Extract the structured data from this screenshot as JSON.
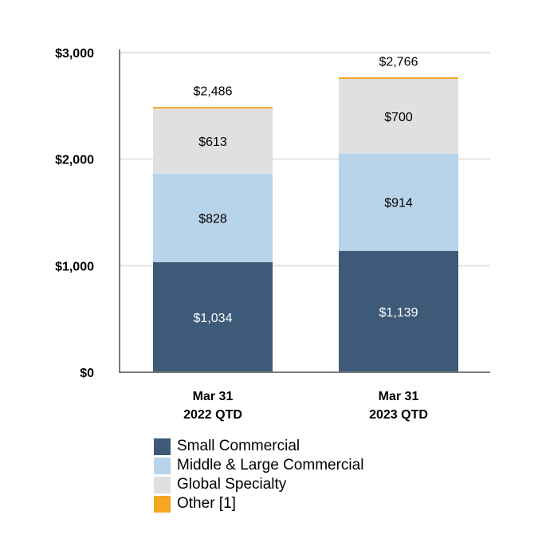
{
  "chart_data": {
    "type": "bar",
    "stacked": true,
    "title": "",
    "xlabel": "",
    "ylabel": "",
    "categories": [
      [
        "Mar 31",
        "2022 QTD"
      ],
      [
        "Mar 31",
        "2023 QTD"
      ]
    ],
    "ylim": [
      0,
      3000
    ],
    "yticks": [
      0,
      1000,
      2000,
      3000
    ],
    "ytick_labels": [
      "$0",
      "$1,000",
      "$2,000",
      "$3,000"
    ],
    "grid": true,
    "legend_position": "bottom",
    "series": [
      {
        "name": "Small Commercial",
        "values": [
          1034,
          1139
        ],
        "labels": [
          "$1,034",
          "$1,139"
        ],
        "color": "#3d5a78",
        "label_color": "#ffffff"
      },
      {
        "name": "Middle & Large Commercial",
        "values": [
          828,
          914
        ],
        "labels": [
          "$828",
          "$914"
        ],
        "color": "#b8d4ea",
        "label_color": "#000000"
      },
      {
        "name": "Global Specialty",
        "values": [
          613,
          700
        ],
        "labels": [
          "$613",
          "$700"
        ],
        "color": "#e0e0e0",
        "label_color": "#000000"
      },
      {
        "name": "Other [1]",
        "values": [
          11,
          13
        ],
        "labels": [
          null,
          null
        ],
        "color": "#f5a623",
        "label_color": "#000000"
      }
    ],
    "totals": [
      2486,
      2766
    ],
    "total_labels": [
      "$2,486",
      "$2,766"
    ]
  }
}
